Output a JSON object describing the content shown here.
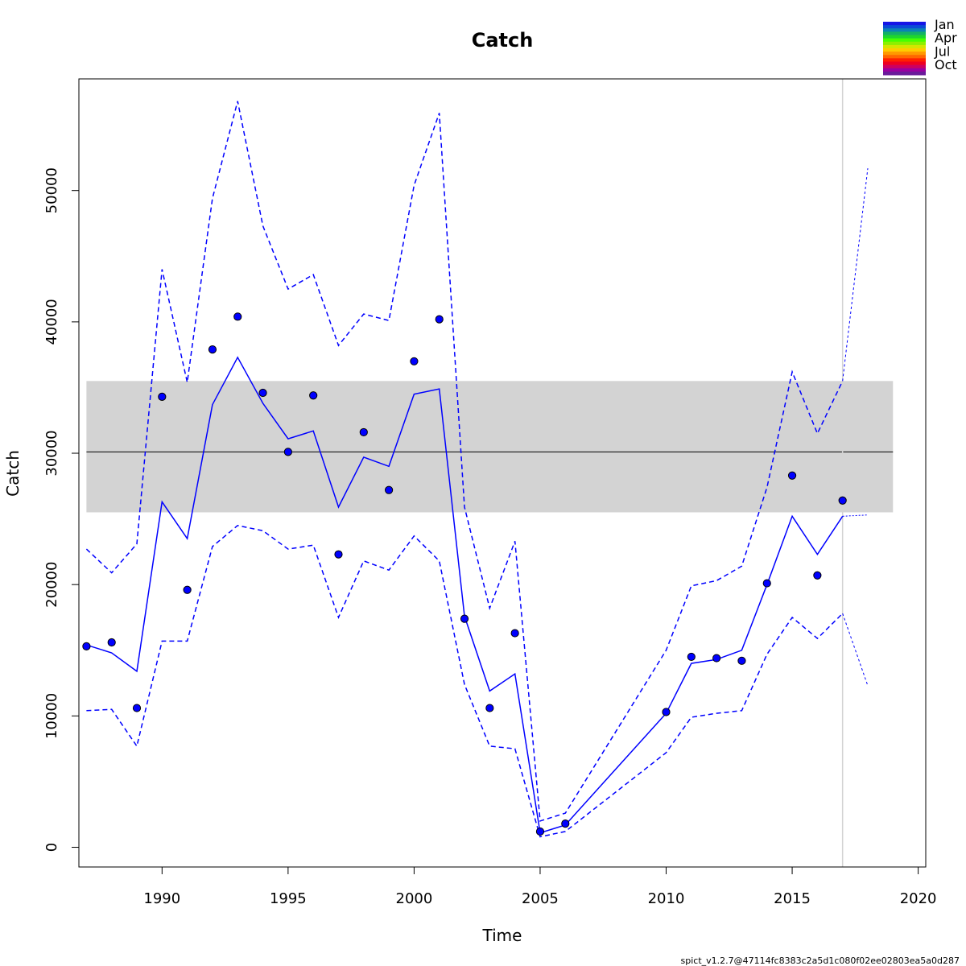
{
  "chart_data": {
    "type": "line",
    "title": "Catch",
    "xlabel": "Time",
    "ylabel": "Catch",
    "xlim": [
      1986.7,
      2020.3
    ],
    "ylim": [
      -1500,
      58500
    ],
    "x_ticks": [
      "1990",
      "1995",
      "2000",
      "2005",
      "2010",
      "2015",
      "2020"
    ],
    "y_ticks": [
      "0",
      "10000",
      "20000",
      "30000",
      "40000",
      "50000"
    ],
    "grid": false,
    "reference": {
      "mean": 30100,
      "band_lower": 25500,
      "band_upper": 35500,
      "x_range": [
        1987,
        2019
      ],
      "band_color": "#d3d3d3",
      "line_color": "#000000"
    },
    "vline": {
      "x": 2017,
      "color": "#d3d3d3"
    },
    "observed": {
      "x": [
        1987,
        1988,
        1989,
        1990,
        1991,
        1992,
        1993,
        1994,
        1995,
        1996,
        1997,
        1998,
        1999,
        2000,
        2001,
        2002,
        2003,
        2004,
        2005,
        2006,
        2010,
        2011,
        2012,
        2013,
        2014,
        2015,
        2016,
        2017
      ],
      "y": [
        15300,
        15600,
        10600,
        34300,
        19600,
        37900,
        40400,
        34600,
        30100,
        34400,
        22300,
        31600,
        27200,
        37000,
        40200,
        17400,
        10600,
        16300,
        1200,
        1800,
        10300,
        14500,
        14400,
        14200,
        20100,
        28300,
        20700,
        26400
      ],
      "point_color": "#0000ff"
    },
    "estimate": {
      "x": [
        1987,
        1988,
        1989,
        1990,
        1991,
        1992,
        1993,
        1994,
        1995,
        1996,
        1997,
        1998,
        1999,
        2000,
        2001,
        2002,
        2003,
        2004,
        2005,
        2006,
        2010,
        2011,
        2012,
        2013,
        2014,
        2015,
        2016,
        2017
      ],
      "y": [
        15400,
        14800,
        13400,
        26300,
        23500,
        33700,
        37300,
        33800,
        31100,
        31700,
        25900,
        29700,
        29000,
        34500,
        34900,
        17600,
        11900,
        13200,
        1100,
        1700,
        10200,
        14000,
        14300,
        15000,
        20000,
        25200,
        22300,
        25200
      ],
      "lower": [
        10400,
        10500,
        7700,
        15700,
        15700,
        22900,
        24500,
        24100,
        22700,
        23000,
        17500,
        21800,
        21100,
        23700,
        21800,
        12400,
        7700,
        7500,
        800,
        1200,
        7200,
        9900,
        10200,
        10400,
        14700,
        17500,
        15900,
        17800
      ],
      "upper": [
        22700,
        20900,
        23100,
        44000,
        35400,
        49400,
        56800,
        47300,
        42500,
        43600,
        38200,
        40600,
        40100,
        50400,
        55900,
        25900,
        18200,
        23300,
        2000,
        2600,
        15000,
        19900,
        20300,
        21400,
        27400,
        36200,
        31500,
        35500
      ],
      "color": "#0000ff"
    },
    "forecast": {
      "x": [
        2017,
        2018
      ],
      "y": [
        25200,
        25300
      ],
      "lower": [
        17800,
        12300
      ],
      "upper": [
        35500,
        51700
      ],
      "color": "#0000ff"
    },
    "legend": {
      "position": "top-right",
      "labels": [
        "Jan",
        "Apr",
        "Jul",
        "Oct"
      ],
      "colors": [
        "#1515e6",
        "#0a4bd6",
        "#0b82b5",
        "#14b066",
        "#1ed62e",
        "#46ff00",
        "#8cf000",
        "#d3e600",
        "#ffcc00",
        "#ff9900",
        "#ff6600",
        "#ff2000",
        "#ee0020",
        "#cc0060",
        "#9900a0",
        "#6a1a9a"
      ]
    }
  },
  "footer": "spict_v1.2.7@47114fc8383c2a5d1c080f02ee02803ea5a0d287"
}
